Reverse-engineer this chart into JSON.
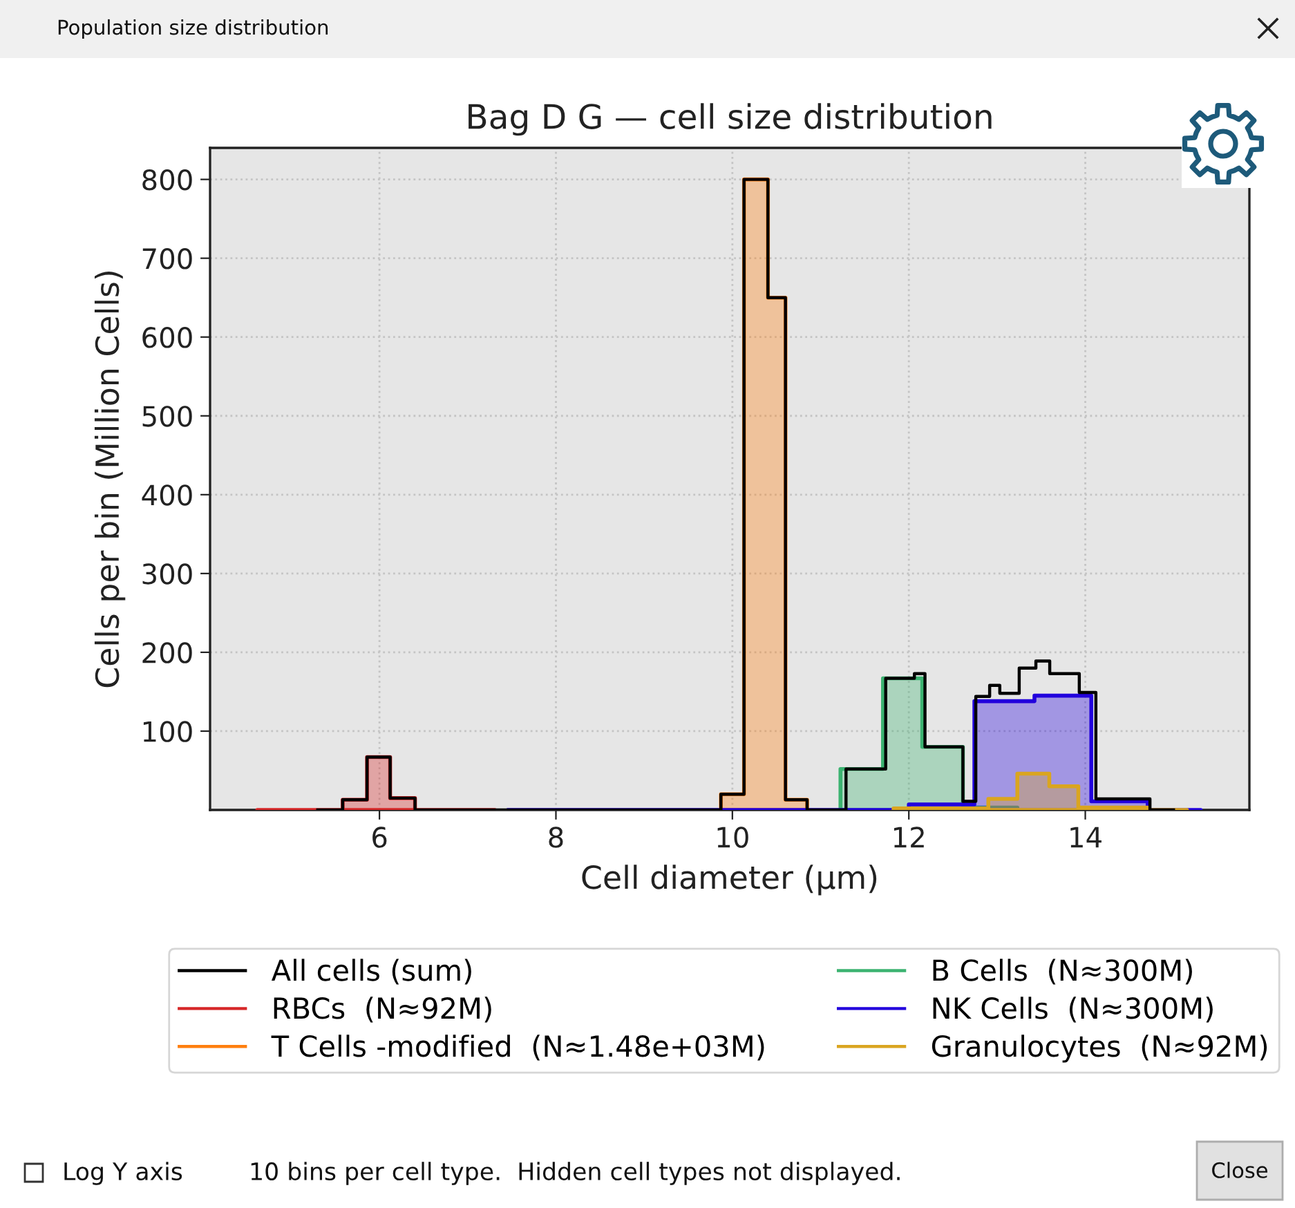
{
  "chart_data": {
    "type": "area",
    "title": "Bag D G — cell size distribution",
    "xlabel": "Cell diameter (µm)",
    "ylabel": "Cells per bin (Million Cells)",
    "xlim": [
      4.08,
      15.86
    ],
    "xticks": [
      6,
      8,
      10,
      12,
      14
    ],
    "ylim": [
      0,
      840
    ],
    "yticks": [
      100,
      200,
      300,
      400,
      500,
      600,
      700,
      800
    ],
    "grid": true,
    "legend": "bottom",
    "annotations": [
      "Population size distribution",
      "Log Y axis",
      "10 bins per cell type.  Hidden cell types not displayed.",
      "Close"
    ],
    "series": [
      {
        "name": "All cells (sum)",
        "type": "step",
        "color": "#000000",
        "x": [
          5.3,
          5.583,
          5.859,
          6.121,
          6.403,
          9.87,
          10.132,
          10.403,
          10.602,
          10.847,
          11.288,
          11.738,
          12.063,
          12.183,
          12.613,
          12.759,
          12.916,
          13.031,
          13.251,
          13.44,
          13.597,
          13.932,
          14.12,
          14.733,
          15.0
        ],
        "values": [
          0,
          13,
          67,
          15,
          0,
          20,
          800,
          650,
          13,
          0,
          52,
          167,
          173,
          80,
          11,
          144,
          158,
          148,
          180,
          189,
          173,
          149,
          14,
          0,
          0
        ]
      },
      {
        "name": "RBCs  (N≈92M)",
        "color": "#d62728",
        "x": [
          4.615,
          5.583,
          5.583,
          5.859,
          5.859,
          6.121,
          6.121,
          6.403,
          6.403,
          7.308
        ],
        "values": [
          0,
          0,
          13,
          13,
          67,
          67,
          15,
          15,
          0,
          0
        ]
      },
      {
        "name": "T Cells -modified  (N≈1.48e+03M)",
        "color": "#ff7f0e",
        "x": [
          9.87,
          9.87,
          10.132,
          10.132,
          10.403,
          10.403,
          10.602,
          10.602,
          10.847,
          10.847
        ],
        "values": [
          0,
          20,
          20,
          800,
          800,
          650,
          650,
          13,
          13,
          0
        ]
      },
      {
        "name": "B Cells  (N≈300M)",
        "color": "#3cb371",
        "x": [
          11.225,
          11.225,
          11.707,
          11.707,
          12.152,
          12.152,
          12.613,
          12.613,
          13.23,
          13.23
        ],
        "values": [
          0,
          52,
          52,
          167,
          167,
          80,
          80,
          3,
          3,
          0
        ]
      },
      {
        "name": "NK Cells  (N≈300M)",
        "color": "#2200dd",
        "x": [
          7.454,
          12.0,
          12.0,
          12.743,
          12.743,
          13.424,
          13.424,
          14.068,
          14.068,
          14.707,
          14.707,
          15.309
        ],
        "values": [
          0,
          0,
          7,
          7,
          138,
          138,
          145,
          145,
          11,
          11,
          0,
          0
        ]
      },
      {
        "name": "Granulocytes  (N≈92M)",
        "color": "#daa520",
        "x": [
          11.827,
          11.827,
          12.901,
          12.901,
          13.23,
          13.23,
          13.592,
          13.592,
          13.921,
          13.921,
          14.707,
          14.707,
          15.152
        ],
        "values": [
          0,
          2,
          2,
          14,
          14,
          46,
          46,
          30,
          30,
          3,
          3,
          0,
          0
        ]
      }
    ]
  }
}
